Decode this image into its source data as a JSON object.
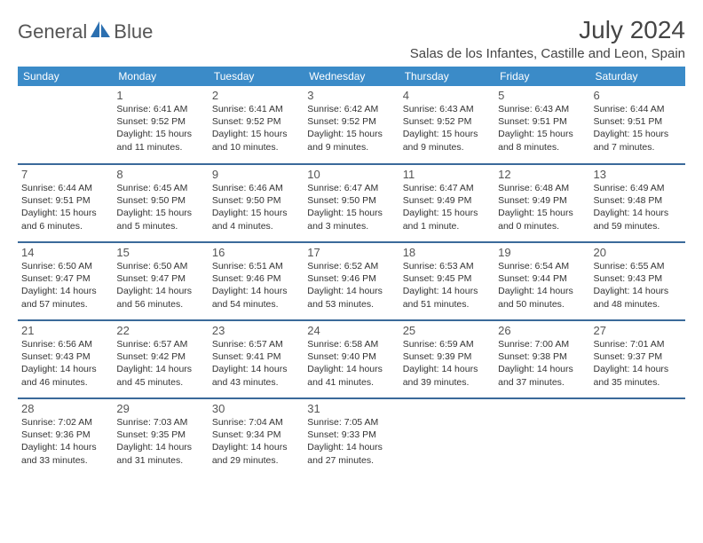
{
  "brand": {
    "part1": "General",
    "part2": "Blue"
  },
  "colors": {
    "header_bg": "#3b8bc8",
    "header_text": "#ffffff",
    "row_divider": "#3b6a9a",
    "logo_blue": "#2b6fb0",
    "text": "#333333"
  },
  "fonts": {
    "body_family": "Arial, Helvetica, sans-serif",
    "title_size": 28,
    "location_size": 15,
    "th_size": 12,
    "daynum_size": 13,
    "info_size": 10.5
  },
  "title": "July 2024",
  "location": "Salas de los Infantes, Castille and Leon, Spain",
  "weekdays": [
    "Sunday",
    "Monday",
    "Tuesday",
    "Wednesday",
    "Thursday",
    "Friday",
    "Saturday"
  ],
  "layout": {
    "columns": 7,
    "rows": 5,
    "start_weekday_index": 1
  },
  "weeks": [
    [
      null,
      {
        "n": "1",
        "sr": "Sunrise: 6:41 AM",
        "ss": "Sunset: 9:52 PM",
        "dl": "Daylight: 15 hours and 11 minutes."
      },
      {
        "n": "2",
        "sr": "Sunrise: 6:41 AM",
        "ss": "Sunset: 9:52 PM",
        "dl": "Daylight: 15 hours and 10 minutes."
      },
      {
        "n": "3",
        "sr": "Sunrise: 6:42 AM",
        "ss": "Sunset: 9:52 PM",
        "dl": "Daylight: 15 hours and 9 minutes."
      },
      {
        "n": "4",
        "sr": "Sunrise: 6:43 AM",
        "ss": "Sunset: 9:52 PM",
        "dl": "Daylight: 15 hours and 9 minutes."
      },
      {
        "n": "5",
        "sr": "Sunrise: 6:43 AM",
        "ss": "Sunset: 9:51 PM",
        "dl": "Daylight: 15 hours and 8 minutes."
      },
      {
        "n": "6",
        "sr": "Sunrise: 6:44 AM",
        "ss": "Sunset: 9:51 PM",
        "dl": "Daylight: 15 hours and 7 minutes."
      }
    ],
    [
      {
        "n": "7",
        "sr": "Sunrise: 6:44 AM",
        "ss": "Sunset: 9:51 PM",
        "dl": "Daylight: 15 hours and 6 minutes."
      },
      {
        "n": "8",
        "sr": "Sunrise: 6:45 AM",
        "ss": "Sunset: 9:50 PM",
        "dl": "Daylight: 15 hours and 5 minutes."
      },
      {
        "n": "9",
        "sr": "Sunrise: 6:46 AM",
        "ss": "Sunset: 9:50 PM",
        "dl": "Daylight: 15 hours and 4 minutes."
      },
      {
        "n": "10",
        "sr": "Sunrise: 6:47 AM",
        "ss": "Sunset: 9:50 PM",
        "dl": "Daylight: 15 hours and 3 minutes."
      },
      {
        "n": "11",
        "sr": "Sunrise: 6:47 AM",
        "ss": "Sunset: 9:49 PM",
        "dl": "Daylight: 15 hours and 1 minute."
      },
      {
        "n": "12",
        "sr": "Sunrise: 6:48 AM",
        "ss": "Sunset: 9:49 PM",
        "dl": "Daylight: 15 hours and 0 minutes."
      },
      {
        "n": "13",
        "sr": "Sunrise: 6:49 AM",
        "ss": "Sunset: 9:48 PM",
        "dl": "Daylight: 14 hours and 59 minutes."
      }
    ],
    [
      {
        "n": "14",
        "sr": "Sunrise: 6:50 AM",
        "ss": "Sunset: 9:47 PM",
        "dl": "Daylight: 14 hours and 57 minutes."
      },
      {
        "n": "15",
        "sr": "Sunrise: 6:50 AM",
        "ss": "Sunset: 9:47 PM",
        "dl": "Daylight: 14 hours and 56 minutes."
      },
      {
        "n": "16",
        "sr": "Sunrise: 6:51 AM",
        "ss": "Sunset: 9:46 PM",
        "dl": "Daylight: 14 hours and 54 minutes."
      },
      {
        "n": "17",
        "sr": "Sunrise: 6:52 AM",
        "ss": "Sunset: 9:46 PM",
        "dl": "Daylight: 14 hours and 53 minutes."
      },
      {
        "n": "18",
        "sr": "Sunrise: 6:53 AM",
        "ss": "Sunset: 9:45 PM",
        "dl": "Daylight: 14 hours and 51 minutes."
      },
      {
        "n": "19",
        "sr": "Sunrise: 6:54 AM",
        "ss": "Sunset: 9:44 PM",
        "dl": "Daylight: 14 hours and 50 minutes."
      },
      {
        "n": "20",
        "sr": "Sunrise: 6:55 AM",
        "ss": "Sunset: 9:43 PM",
        "dl": "Daylight: 14 hours and 48 minutes."
      }
    ],
    [
      {
        "n": "21",
        "sr": "Sunrise: 6:56 AM",
        "ss": "Sunset: 9:43 PM",
        "dl": "Daylight: 14 hours and 46 minutes."
      },
      {
        "n": "22",
        "sr": "Sunrise: 6:57 AM",
        "ss": "Sunset: 9:42 PM",
        "dl": "Daylight: 14 hours and 45 minutes."
      },
      {
        "n": "23",
        "sr": "Sunrise: 6:57 AM",
        "ss": "Sunset: 9:41 PM",
        "dl": "Daylight: 14 hours and 43 minutes."
      },
      {
        "n": "24",
        "sr": "Sunrise: 6:58 AM",
        "ss": "Sunset: 9:40 PM",
        "dl": "Daylight: 14 hours and 41 minutes."
      },
      {
        "n": "25",
        "sr": "Sunrise: 6:59 AM",
        "ss": "Sunset: 9:39 PM",
        "dl": "Daylight: 14 hours and 39 minutes."
      },
      {
        "n": "26",
        "sr": "Sunrise: 7:00 AM",
        "ss": "Sunset: 9:38 PM",
        "dl": "Daylight: 14 hours and 37 minutes."
      },
      {
        "n": "27",
        "sr": "Sunrise: 7:01 AM",
        "ss": "Sunset: 9:37 PM",
        "dl": "Daylight: 14 hours and 35 minutes."
      }
    ],
    [
      {
        "n": "28",
        "sr": "Sunrise: 7:02 AM",
        "ss": "Sunset: 9:36 PM",
        "dl": "Daylight: 14 hours and 33 minutes."
      },
      {
        "n": "29",
        "sr": "Sunrise: 7:03 AM",
        "ss": "Sunset: 9:35 PM",
        "dl": "Daylight: 14 hours and 31 minutes."
      },
      {
        "n": "30",
        "sr": "Sunrise: 7:04 AM",
        "ss": "Sunset: 9:34 PM",
        "dl": "Daylight: 14 hours and 29 minutes."
      },
      {
        "n": "31",
        "sr": "Sunrise: 7:05 AM",
        "ss": "Sunset: 9:33 PM",
        "dl": "Daylight: 14 hours and 27 minutes."
      },
      null,
      null,
      null
    ]
  ]
}
